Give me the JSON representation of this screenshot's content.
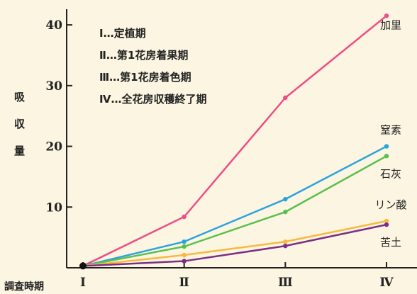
{
  "chart_data": {
    "type": "line",
    "ylabel": "吸収量",
    "xlabel": "調査時期",
    "x": [
      "Ⅰ",
      "Ⅱ",
      "Ⅲ",
      "Ⅳ"
    ],
    "yticks": [
      10,
      20,
      30,
      40
    ],
    "ylim": [
      0,
      42
    ],
    "grid": false,
    "legend_items": [
      "Ⅰ…定植期",
      "Ⅱ…第1花房着果期",
      "Ⅲ…第1花房着色期",
      "Ⅳ…全花房収穫終了期"
    ],
    "series": [
      {
        "name": "加里",
        "color": "#ee4d86",
        "values": [
          0.3,
          8.4,
          28.0,
          41.5
        ]
      },
      {
        "name": "窒素",
        "color": "#2aa3dc",
        "values": [
          0.3,
          4.3,
          11.3,
          20.0
        ]
      },
      {
        "name": "石灰",
        "color": "#5bbf4d",
        "values": [
          0.3,
          3.5,
          9.2,
          18.4
        ]
      },
      {
        "name": "リン酸",
        "color": "#f7b93e",
        "values": [
          0.3,
          2.1,
          4.3,
          7.7
        ]
      },
      {
        "name": "苦土",
        "color": "#7a2f86",
        "values": [
          0.3,
          1.1,
          3.6,
          7.1
        ]
      }
    ]
  }
}
